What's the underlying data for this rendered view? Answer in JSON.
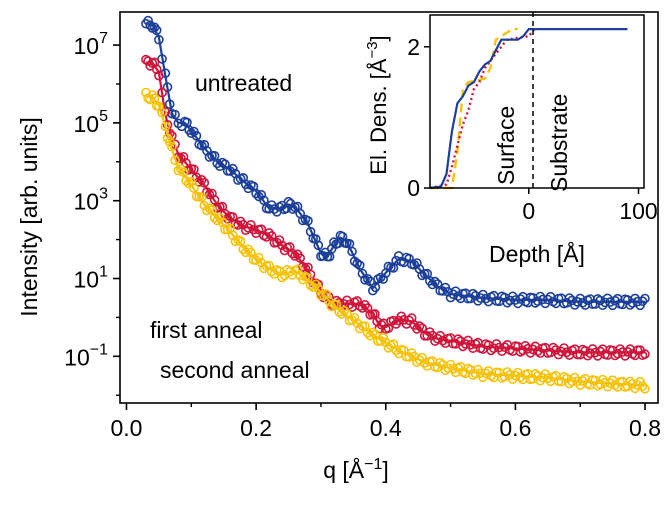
{
  "chart_data": [
    {
      "type": "scatter",
      "xlabel": "q [Å",
      "xlabel_sup": "−1",
      "xlabel_end": "]",
      "ylabel": "Intensity [arb. units]",
      "xlim": [
        -0.01,
        0.82
      ],
      "ylog": true,
      "ylim_log10": [
        -2.2,
        7.85
      ],
      "xticks": [
        {
          "v": 0.0,
          "label": "0.0"
        },
        {
          "v": 0.2,
          "label": "0.2"
        },
        {
          "v": 0.4,
          "label": "0.4"
        },
        {
          "v": 0.6,
          "label": "0.6"
        },
        {
          "v": 0.8,
          "label": "0.8"
        }
      ],
      "yticks": [
        {
          "v": 7,
          "base": "10",
          "exp": "7"
        },
        {
          "v": 5,
          "base": "10",
          "exp": "5"
        },
        {
          "v": 3,
          "base": "10",
          "exp": "3"
        },
        {
          "v": 1,
          "base": "10",
          "exp": "1"
        },
        {
          "v": -1,
          "base": "10",
          "exp": "−1"
        }
      ],
      "annotations": [
        "untreated",
        "first anneal",
        "second anneal"
      ],
      "series": [
        {
          "color": "#1b3f9a",
          "points": [
            [
              0.03,
              7.55
            ],
            [
              0.04,
              7.52
            ],
            [
              0.05,
              7.2
            ],
            [
              0.06,
              6.2
            ],
            [
              0.07,
              5.25
            ],
            [
              0.08,
              5.0
            ],
            [
              0.09,
              5.0
            ],
            [
              0.1,
              4.8
            ],
            [
              0.12,
              4.35
            ],
            [
              0.14,
              4.0
            ],
            [
              0.16,
              3.8
            ],
            [
              0.18,
              3.5
            ],
            [
              0.2,
              3.25
            ],
            [
              0.22,
              2.8
            ],
            [
              0.24,
              2.8
            ],
            [
              0.25,
              2.9
            ],
            [
              0.26,
              2.85
            ],
            [
              0.28,
              2.4
            ],
            [
              0.3,
              1.65
            ],
            [
              0.31,
              1.55
            ],
            [
              0.32,
              1.85
            ],
            [
              0.33,
              2.05
            ],
            [
              0.34,
              1.95
            ],
            [
              0.36,
              1.25
            ],
            [
              0.38,
              0.75
            ],
            [
              0.4,
              1.15
            ],
            [
              0.42,
              1.5
            ],
            [
              0.44,
              1.45
            ],
            [
              0.46,
              1.1
            ],
            [
              0.48,
              0.8
            ],
            [
              0.5,
              0.6
            ],
            [
              0.55,
              0.5
            ],
            [
              0.6,
              0.45
            ],
            [
              0.65,
              0.45
            ],
            [
              0.7,
              0.4
            ],
            [
              0.75,
              0.4
            ],
            [
              0.8,
              0.4
            ]
          ]
        },
        {
          "color": "#d0143a",
          "points": [
            [
              0.03,
              6.55
            ],
            [
              0.04,
              6.55
            ],
            [
              0.05,
              6.3
            ],
            [
              0.06,
              5.2
            ],
            [
              0.07,
              4.6
            ],
            [
              0.08,
              4.2
            ],
            [
              0.1,
              3.8
            ],
            [
              0.12,
              3.4
            ],
            [
              0.14,
              2.9
            ],
            [
              0.16,
              2.55
            ],
            [
              0.18,
              2.35
            ],
            [
              0.2,
              2.25
            ],
            [
              0.22,
              2.1
            ],
            [
              0.24,
              1.85
            ],
            [
              0.26,
              1.65
            ],
            [
              0.28,
              1.2
            ],
            [
              0.3,
              0.65
            ],
            [
              0.32,
              0.35
            ],
            [
              0.34,
              0.35
            ],
            [
              0.36,
              0.35
            ],
            [
              0.38,
              0.1
            ],
            [
              0.39,
              -0.2
            ],
            [
              0.4,
              -0.25
            ],
            [
              0.42,
              -0.05
            ],
            [
              0.44,
              -0.1
            ],
            [
              0.46,
              -0.4
            ],
            [
              0.48,
              -0.55
            ],
            [
              0.5,
              -0.6
            ],
            [
              0.55,
              -0.75
            ],
            [
              0.6,
              -0.8
            ],
            [
              0.65,
              -0.85
            ],
            [
              0.7,
              -0.9
            ],
            [
              0.75,
              -0.9
            ],
            [
              0.8,
              -0.9
            ]
          ]
        },
        {
          "color": "#f5c20a",
          "points": [
            [
              0.03,
              5.7
            ],
            [
              0.04,
              5.65
            ],
            [
              0.05,
              5.45
            ],
            [
              0.06,
              4.9
            ],
            [
              0.07,
              4.3
            ],
            [
              0.08,
              3.85
            ],
            [
              0.1,
              3.4
            ],
            [
              0.12,
              2.9
            ],
            [
              0.14,
              2.55
            ],
            [
              0.16,
              2.2
            ],
            [
              0.18,
              1.8
            ],
            [
              0.2,
              1.5
            ],
            [
              0.22,
              1.25
            ],
            [
              0.24,
              1.1
            ],
            [
              0.26,
              1.2
            ],
            [
              0.28,
              0.95
            ],
            [
              0.3,
              0.65
            ],
            [
              0.32,
              0.3
            ],
            [
              0.34,
              0.05
            ],
            [
              0.36,
              -0.2
            ],
            [
              0.38,
              -0.45
            ],
            [
              0.4,
              -0.65
            ],
            [
              0.42,
              -0.85
            ],
            [
              0.44,
              -1.0
            ],
            [
              0.46,
              -1.15
            ],
            [
              0.5,
              -1.3
            ],
            [
              0.55,
              -1.45
            ],
            [
              0.6,
              -1.5
            ],
            [
              0.65,
              -1.55
            ],
            [
              0.7,
              -1.65
            ],
            [
              0.75,
              -1.7
            ],
            [
              0.8,
              -1.75
            ]
          ]
        }
      ]
    },
    {
      "type": "line",
      "xlabel": "Depth [Å]",
      "ylabel": "El. Dens. [Å",
      "ylabel_sup": "−3",
      "ylabel_end": "]",
      "xlim": [
        -90,
        105
      ],
      "ylim": [
        0,
        2.45
      ],
      "xticks": [
        {
          "v": 0,
          "label": "0"
        },
        {
          "v": 100,
          "label": "100"
        }
      ],
      "yticks": [
        {
          "v": 0,
          "label": "0"
        },
        {
          "v": 2,
          "label": "2"
        }
      ],
      "region_labels": [
        "Surface",
        "Substrate"
      ],
      "series": [
        {
          "color": "#1b3f9a",
          "style": "solid",
          "points": [
            [
              -90,
              0
            ],
            [
              -80,
              0.02
            ],
            [
              -75,
              0.2
            ],
            [
              -70,
              0.8
            ],
            [
              -65,
              1.2
            ],
            [
              -60,
              1.3
            ],
            [
              -55,
              1.45
            ],
            [
              -50,
              1.5
            ],
            [
              -45,
              1.65
            ],
            [
              -40,
              1.75
            ],
            [
              -35,
              1.8
            ],
            [
              -30,
              1.95
            ],
            [
              -25,
              2.1
            ],
            [
              -20,
              2.1
            ],
            [
              -10,
              2.1
            ],
            [
              -5,
              2.15
            ],
            [
              0,
              2.25
            ],
            [
              90,
              2.25
            ]
          ]
        },
        {
          "color": "#d0143a",
          "style": "dotted",
          "points": [
            [
              -90,
              0
            ],
            [
              -75,
              0.05
            ],
            [
              -70,
              0.3
            ],
            [
              -65,
              0.6
            ],
            [
              -60,
              0.9
            ],
            [
              -55,
              1.1
            ],
            [
              -50,
              1.4
            ],
            [
              -45,
              1.5
            ],
            [
              -40,
              1.7
            ],
            [
              -30,
              1.9
            ],
            [
              -20,
              2.1
            ],
            [
              0,
              2.15
            ],
            [
              5,
              2.25
            ]
          ]
        },
        {
          "color": "#f5c20a",
          "style": "dashed",
          "points": [
            [
              -90,
              0
            ],
            [
              -70,
              0
            ],
            [
              -65,
              0.5
            ],
            [
              -60,
              1.4
            ],
            [
              -55,
              1.5
            ],
            [
              -40,
              1.55
            ],
            [
              -35,
              1.7
            ],
            [
              -30,
              2.1
            ],
            [
              -20,
              2.2
            ],
            [
              -15,
              2.25
            ],
            [
              -10,
              2.25
            ]
          ]
        }
      ]
    }
  ]
}
